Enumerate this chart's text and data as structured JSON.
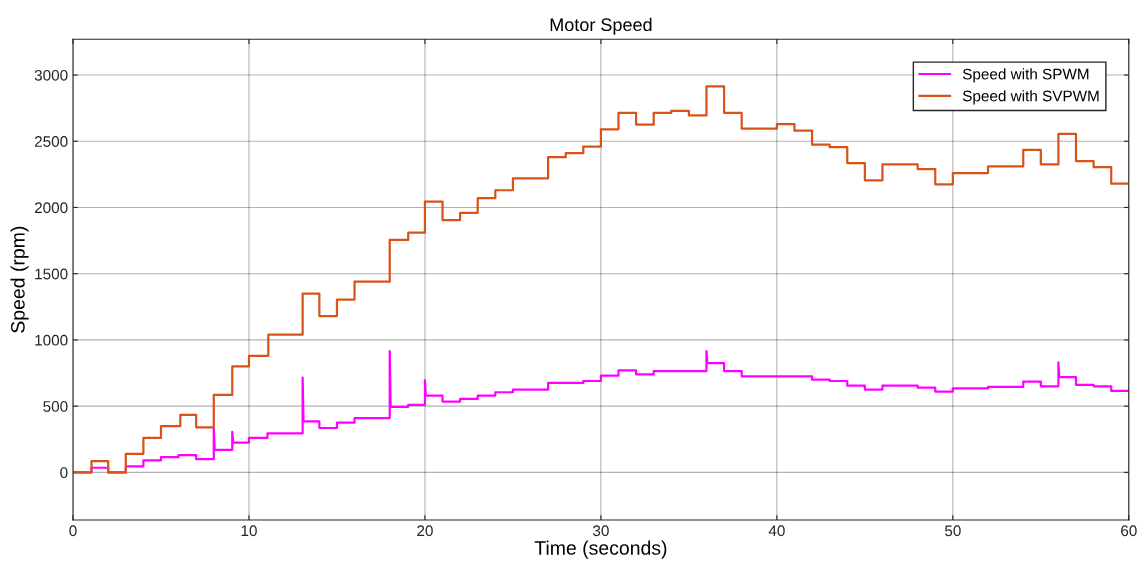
{
  "chart_data": {
    "type": "line",
    "title": "Motor Speed",
    "xlabel": "Time (seconds)",
    "ylabel": "Speed (rpm)",
    "xlim": [
      0,
      60
    ],
    "xticks": [
      0,
      10,
      20,
      30,
      40,
      50,
      60
    ],
    "ylim": [
      -360,
      3270
    ],
    "yticks": [
      0,
      500,
      1000,
      1500,
      2000,
      2500,
      3000
    ],
    "grid": true,
    "legend": "top right",
    "marker": "none",
    "line_style": "solid",
    "series": [
      {
        "name": "Speed with SPWM",
        "color": "#ff00ff",
        "x": [
          0,
          1.05,
          1.05,
          2,
          2,
          3,
          3,
          4,
          4,
          5,
          5,
          6,
          6,
          7,
          7,
          8,
          8,
          8.05,
          9.05,
          9.05,
          9.1,
          10,
          10,
          11.05,
          11.05,
          13.05,
          13.05,
          13.1,
          14,
          14,
          15,
          15,
          16,
          16,
          18,
          18,
          18.05,
          19.05,
          19.05,
          20,
          20,
          20.05,
          21,
          21,
          22,
          22,
          23,
          23,
          24,
          24,
          25,
          25,
          27,
          27,
          29,
          29,
          30,
          30,
          31,
          31,
          32,
          32,
          33,
          33,
          36,
          36,
          36.05,
          37,
          37,
          38,
          38,
          42,
          42,
          43,
          43,
          44,
          44,
          45,
          45,
          46,
          46,
          48,
          48,
          49,
          49,
          50,
          50,
          52,
          52,
          54,
          54,
          55,
          55,
          56,
          56,
          56.05,
          57,
          57,
          58,
          58,
          59,
          59,
          60
        ],
        "values": [
          0,
          0,
          35,
          35,
          0,
          0,
          45,
          45,
          90,
          90,
          115,
          115,
          130,
          130,
          100,
          100,
          335,
          170,
          170,
          305,
          225,
          225,
          260,
          260,
          295,
          295,
          715,
          385,
          385,
          335,
          335,
          375,
          375,
          410,
          410,
          915,
          495,
          495,
          510,
          510,
          695,
          580,
          580,
          535,
          535,
          555,
          555,
          580,
          580,
          605,
          605,
          625,
          625,
          675,
          675,
          690,
          690,
          730,
          730,
          770,
          770,
          740,
          740,
          765,
          765,
          915,
          825,
          825,
          765,
          765,
          725,
          725,
          700,
          700,
          690,
          690,
          655,
          655,
          625,
          625,
          655,
          655,
          640,
          640,
          610,
          610,
          635,
          635,
          645,
          645,
          685,
          685,
          650,
          650,
          830,
          720,
          720,
          660,
          660,
          650,
          650,
          615,
          615
        ]
      },
      {
        "name": "Speed with SVPWM",
        "color": "#d95319",
        "x": [
          0,
          1.05,
          1.05,
          2,
          2,
          3,
          3,
          4,
          4,
          5,
          5,
          6.1,
          6.1,
          7,
          7,
          8,
          8,
          9.05,
          9.05,
          10,
          10,
          11.1,
          11.1,
          13.05,
          13.05,
          14,
          14,
          15,
          15,
          16,
          16,
          18,
          18,
          19.05,
          19.05,
          20,
          20,
          21,
          21,
          22,
          22,
          23,
          23,
          24,
          24,
          25,
          25,
          27,
          27,
          28,
          28,
          29,
          29,
          30,
          30,
          31,
          31,
          32,
          32,
          33,
          33,
          34,
          34,
          35,
          35,
          36,
          36,
          37,
          37,
          38,
          38,
          40,
          40,
          41,
          41,
          42,
          42,
          43,
          43,
          44,
          44,
          45,
          45,
          46,
          46,
          48,
          48,
          49,
          49,
          50,
          50,
          52,
          52,
          54,
          54,
          55,
          55,
          56,
          56,
          57,
          57,
          58,
          58,
          59,
          59,
          60
        ],
        "values": [
          0,
          0,
          85,
          85,
          0,
          0,
          140,
          140,
          260,
          260,
          350,
          350,
          435,
          435,
          340,
          340,
          585,
          585,
          800,
          800,
          880,
          880,
          1040,
          1040,
          1350,
          1350,
          1180,
          1180,
          1305,
          1305,
          1440,
          1440,
          1755,
          1755,
          1810,
          1810,
          2045,
          2045,
          1905,
          1905,
          1960,
          1960,
          2070,
          2070,
          2130,
          2130,
          2220,
          2220,
          2380,
          2380,
          2410,
          2410,
          2460,
          2460,
          2590,
          2590,
          2715,
          2715,
          2625,
          2625,
          2715,
          2715,
          2730,
          2730,
          2695,
          2695,
          2915,
          2915,
          2715,
          2715,
          2595,
          2595,
          2630,
          2630,
          2580,
          2580,
          2475,
          2475,
          2455,
          2455,
          2335,
          2335,
          2205,
          2205,
          2325,
          2325,
          2290,
          2290,
          2175,
          2175,
          2260,
          2260,
          2310,
          2310,
          2435,
          2435,
          2325,
          2325,
          2555,
          2555,
          2350,
          2350,
          2305,
          2305,
          2180,
          2180
        ]
      }
    ]
  }
}
